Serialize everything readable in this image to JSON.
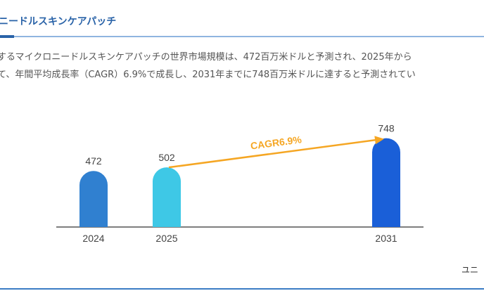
{
  "header": {
    "title": "ニードルスキンケアパッチ"
  },
  "description": {
    "line1": "するマイクロニードルスキンケアパッチの世界市場規模は、472百万米ドルと予測され、2025年から",
    "line2": "て、年間平均成長率（CAGR）6.9%で成長し、2031年までに748百万米ドルに達すると予測されてい"
  },
  "chart_data": {
    "type": "bar",
    "categories": [
      "2024",
      "2025",
      "2031"
    ],
    "values": [
      472,
      502,
      748
    ],
    "bar_colors": [
      "#3080d0",
      "#3ec8e6",
      "#1a5fd8"
    ],
    "annotation": {
      "text": "CAGR6.9%",
      "from": "2025",
      "to": "2031",
      "color": "#f5a623"
    }
  },
  "source": "ユニ"
}
